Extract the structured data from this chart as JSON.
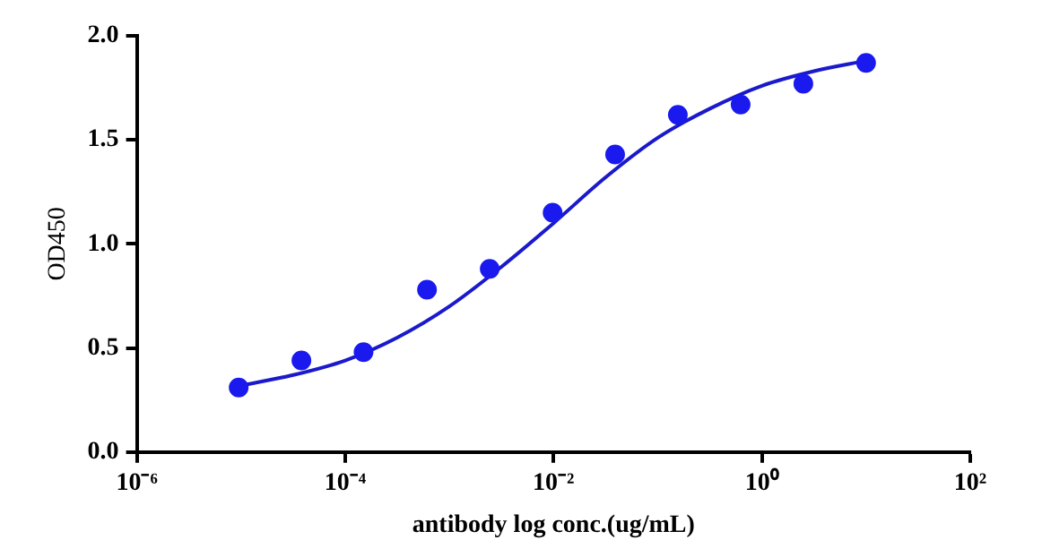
{
  "chart_data": {
    "type": "scatter",
    "xlabel": "antibody log conc.(ug/mL)",
    "ylabel": "OD450",
    "log": "x",
    "grid": false,
    "legend": false,
    "xlim": [
      1e-06,
      100
    ],
    "xticks": [
      {
        "value": 1e-06,
        "label": "10⁻⁶"
      },
      {
        "value": 0.0001,
        "label": "10⁻⁴"
      },
      {
        "value": 0.01,
        "label": "10⁻²"
      },
      {
        "value": 1,
        "label": "10⁰"
      },
      {
        "value": 100,
        "label": "10²"
      }
    ],
    "ylim": [
      0,
      2
    ],
    "yticks": [
      {
        "value": 0,
        "label": "0.0"
      },
      0.5,
      {
        "value": 1,
        "label": "1.0"
      },
      1.5,
      {
        "value": 2,
        "label": "2.0"
      }
    ],
    "series": [
      {
        "type": "scatter",
        "marker": "circle",
        "color": "#1a1aee",
        "x": [
          9.5e-06,
          3.8e-05,
          0.00015,
          0.00061,
          0.00244,
          0.0098,
          0.039,
          0.156,
          0.625,
          2.5,
          10
        ],
        "values": [
          0.31,
          0.44,
          0.48,
          0.78,
          0.88,
          1.15,
          1.43,
          1.62,
          1.67,
          1.77,
          1.87
        ]
      },
      {
        "type": "line",
        "marker": "none",
        "line_style": "solid",
        "color": "#1a1acc",
        "x": [
          1e-05,
          3.16e-05,
          0.0001,
          0.000316,
          0.001,
          0.00316,
          0.01,
          0.0316,
          0.1,
          0.316,
          1,
          3.16,
          10
        ],
        "values": [
          0.32,
          0.37,
          0.44,
          0.55,
          0.7,
          0.89,
          1.1,
          1.32,
          1.51,
          1.65,
          1.76,
          1.83,
          1.88
        ]
      }
    ]
  }
}
